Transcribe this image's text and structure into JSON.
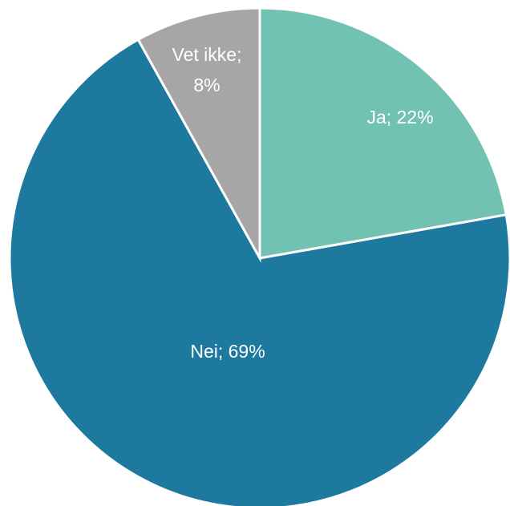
{
  "chart_data": {
    "type": "pie",
    "title": "",
    "slices": [
      {
        "label": "Ja",
        "value": 22,
        "color": "#72c2b4",
        "data_label": "Ja; 22%"
      },
      {
        "label": "Nei",
        "value": 69,
        "color": "#1d7a9e",
        "data_label": "Nei; 69%"
      },
      {
        "label": "Vet ikke",
        "value": 8,
        "color": "#a6a6a6",
        "data_label_lines": [
          "Vet ikke;",
          "8%"
        ]
      }
    ],
    "start_angle": "12 o'clock",
    "direction": "clockwise",
    "legend": "none"
  }
}
